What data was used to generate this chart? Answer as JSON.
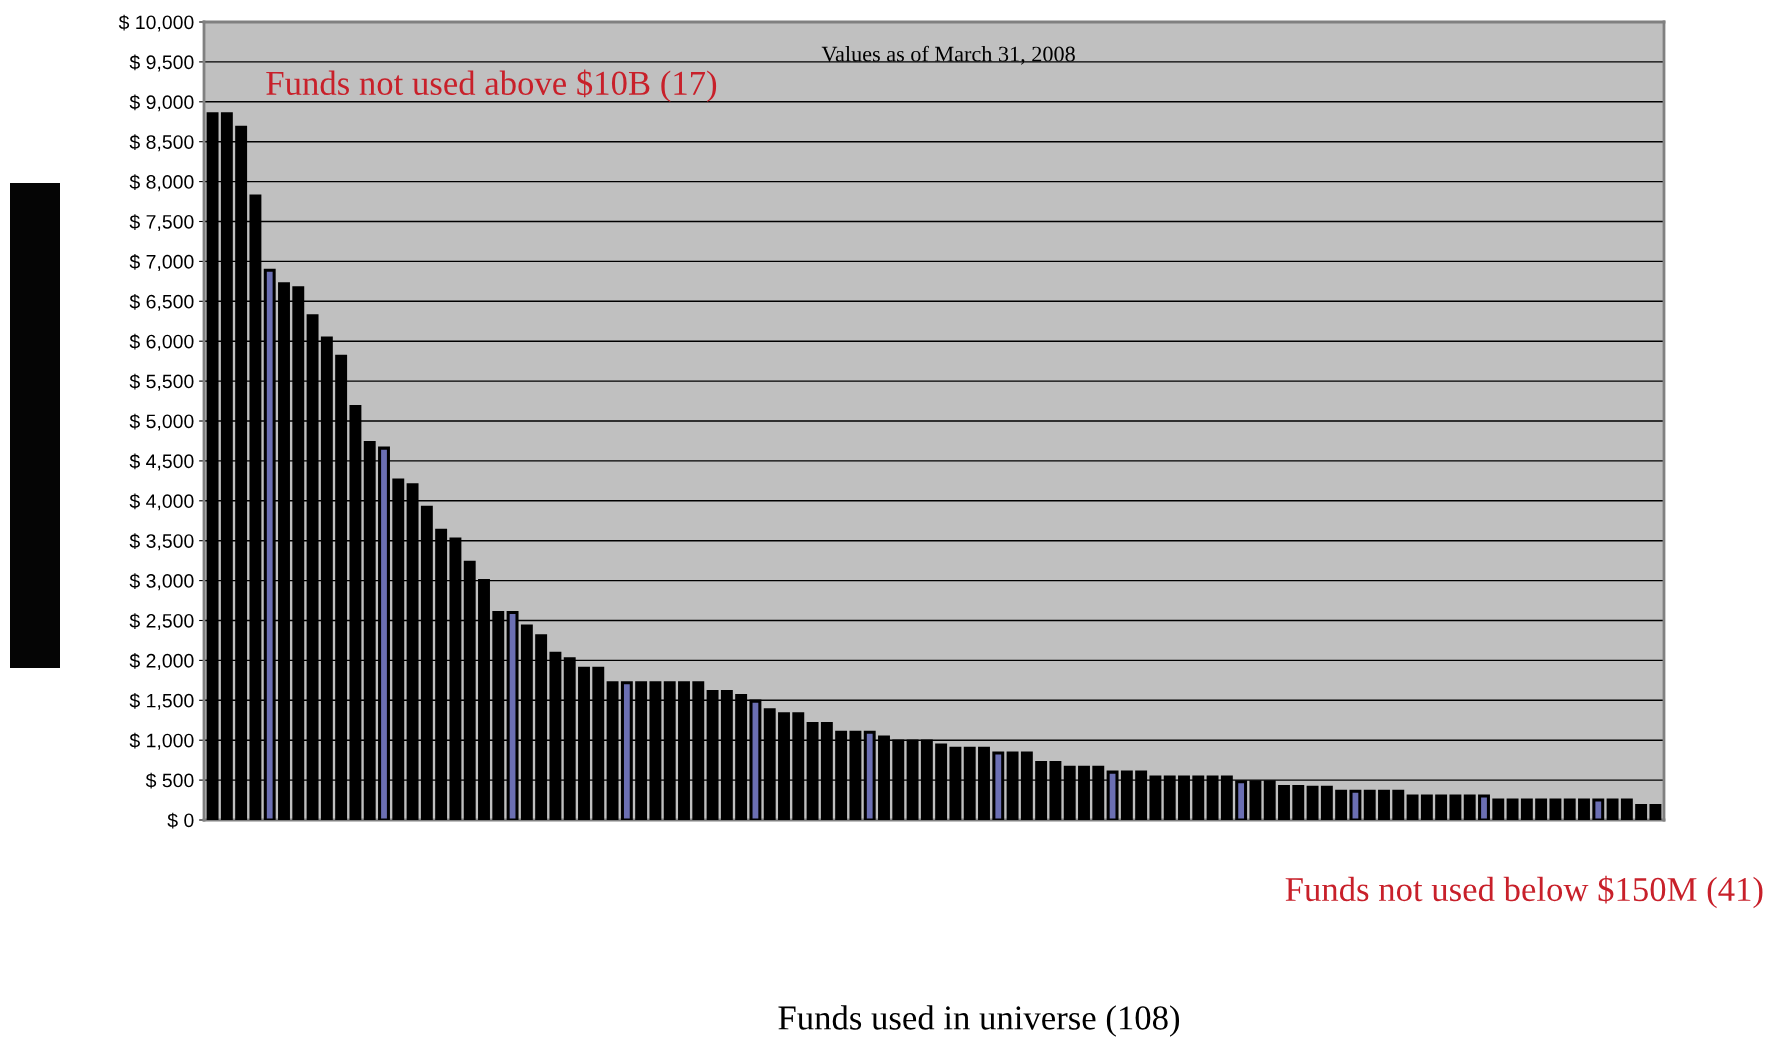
{
  "chart_data": {
    "type": "bar",
    "title": "Values as of March 31, 2008",
    "annotations": [
      "Funds not used above $10B (17)",
      "Funds not used below $150M (41)",
      "Funds used in universe (108)"
    ],
    "categories": [
      null,
      null,
      null,
      null,
      null,
      null,
      null,
      null,
      null,
      null,
      null,
      null,
      null,
      null,
      null,
      null,
      null,
      null,
      null,
      null,
      null,
      null,
      null,
      null,
      null,
      null,
      null,
      null,
      null,
      null,
      null,
      null,
      null,
      null,
      null,
      null,
      null,
      null,
      null,
      null,
      null,
      null,
      null,
      null,
      null,
      null,
      null,
      null,
      null,
      null,
      null,
      null,
      null,
      null,
      null,
      null,
      null,
      null,
      null,
      null,
      null,
      null,
      null,
      null,
      null,
      null,
      null,
      null,
      null,
      null,
      null,
      null,
      null,
      null,
      null,
      null,
      null,
      null,
      null,
      null,
      null,
      null,
      null,
      null,
      null,
      null,
      null,
      null,
      null,
      null,
      null,
      null,
      null,
      null,
      null,
      null,
      null,
      null,
      null,
      null,
      null,
      null
    ],
    "values": [
      8850,
      8850,
      8680,
      7820,
      6890,
      6720,
      6670,
      6320,
      6040,
      5810,
      5180,
      4730,
      4660,
      4260,
      4200,
      3920,
      3630,
      3520,
      3230,
      3000,
      2600,
      2600,
      2430,
      2310,
      2090,
      2020,
      1900,
      1900,
      1720,
      1720,
      1720,
      1720,
      1720,
      1720,
      1720,
      1610,
      1610,
      1560,
      1490,
      1380,
      1330,
      1330,
      1210,
      1210,
      1100,
      1100,
      1100,
      1040,
      990,
      990,
      990,
      940,
      900,
      900,
      900,
      840,
      840,
      840,
      720,
      720,
      660,
      660,
      660,
      600,
      600,
      600,
      540,
      540,
      540,
      540,
      540,
      540,
      480,
      480,
      480,
      420,
      420,
      410,
      410,
      360,
      360,
      360,
      360,
      360,
      300,
      300,
      300,
      300,
      300,
      300,
      250,
      250,
      250,
      250,
      250,
      250,
      250,
      250,
      250,
      250,
      180,
      180
    ],
    "colors": [
      "#000000",
      "#000000",
      "#000000",
      "#000000",
      "#6b6fb3",
      "#000000",
      "#000000",
      "#000000",
      "#000000",
      "#000000",
      "#000000",
      "#000000",
      "#6b6fb3",
      "#000000",
      "#000000",
      "#000000",
      "#000000",
      "#000000",
      "#000000",
      "#000000",
      "#000000",
      "#6b6fb3",
      "#000000",
      "#000000",
      "#000000",
      "#000000",
      "#000000",
      "#000000",
      "#000000",
      "#6b6fb3",
      "#000000",
      "#000000",
      "#000000",
      "#000000",
      "#000000",
      "#000000",
      "#000000",
      "#000000",
      "#6b6fb3",
      "#000000",
      "#000000",
      "#000000",
      "#000000",
      "#000000",
      "#000000",
      "#000000",
      "#6b6fb3",
      "#000000",
      "#000000",
      "#000000",
      "#000000",
      "#000000",
      "#000000",
      "#000000",
      "#000000",
      "#6b6fb3",
      "#000000",
      "#000000",
      "#000000",
      "#000000",
      "#000000",
      "#000000",
      "#000000",
      "#6b6fb3",
      "#000000",
      "#000000",
      "#000000",
      "#000000",
      "#000000",
      "#000000",
      "#000000",
      "#000000",
      "#6b6fb3",
      "#000000",
      "#000000",
      "#000000",
      "#000000",
      "#000000",
      "#000000",
      "#000000",
      "#6b6fb3",
      "#000000",
      "#000000",
      "#000000",
      "#000000",
      "#000000",
      "#000000",
      "#000000",
      "#000000",
      "#6b6fb3",
      "#000000",
      "#000000",
      "#000000",
      "#000000",
      "#000000",
      "#000000",
      "#000000",
      "#6b6fb3",
      "#000000",
      "#000000",
      "#000000",
      "#000000"
    ],
    "ylim": [
      0,
      10000
    ],
    "yticks": [
      {
        "value": 0,
        "label": "$ 0"
      },
      {
        "value": 500,
        "label": "$ 500"
      },
      {
        "value": 1000,
        "label": "$ 1,000"
      },
      {
        "value": 1500,
        "label": "$ 1,500"
      },
      {
        "value": 2000,
        "label": "$ 2,000"
      },
      {
        "value": 2500,
        "label": "$ 2,500"
      },
      {
        "value": 3000,
        "label": "$ 3,000"
      },
      {
        "value": 3500,
        "label": "$ 3,500"
      },
      {
        "value": 4000,
        "label": "$ 4,000"
      },
      {
        "value": 4500,
        "label": "$ 4,500"
      },
      {
        "value": 5000,
        "label": "$ 5,000"
      },
      {
        "value": 5500,
        "label": "$ 5,500"
      },
      {
        "value": 6000,
        "label": "$ 6,000"
      },
      {
        "value": 6500,
        "label": "$ 6,500"
      },
      {
        "value": 7000,
        "label": "$ 7,000"
      },
      {
        "value": 7500,
        "label": "$ 7,500"
      },
      {
        "value": 8000,
        "label": "$ 8,000"
      },
      {
        "value": 8500,
        "label": "$ 8,500"
      },
      {
        "value": 9000,
        "label": "$ 9,000"
      },
      {
        "value": 9500,
        "label": "$ 9,500"
      },
      {
        "value": 10000,
        "label": "$ 10,000"
      }
    ],
    "grid": "y",
    "legend": false
  }
}
